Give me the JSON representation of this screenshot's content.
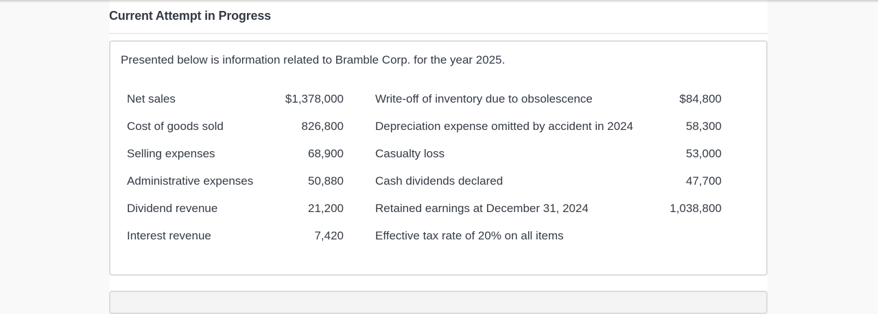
{
  "header": {
    "title": "Current Attempt in Progress"
  },
  "question": {
    "intro": "Presented below is information related to Bramble Corp. for the year 2025.",
    "rows": [
      {
        "left_label": "Net sales",
        "left_value": "$1,378,000",
        "right_label": "Write-off of inventory due to obsolescence",
        "right_value": "$84,800"
      },
      {
        "left_label": "Cost of goods sold",
        "left_value": "826,800",
        "right_label": "Depreciation expense omitted by accident in 2024",
        "right_value": "58,300"
      },
      {
        "left_label": "Selling expenses",
        "left_value": "68,900",
        "right_label": "Casualty loss",
        "right_value": "53,000"
      },
      {
        "left_label": "Administrative expenses",
        "left_value": "50,880",
        "right_label": "Cash dividends declared",
        "right_value": "47,700"
      },
      {
        "left_label": "Dividend revenue",
        "left_value": "21,200",
        "right_label": "Retained earnings at December 31, 2024",
        "right_value": "1,038,800"
      },
      {
        "left_label": "Interest revenue",
        "left_value": "7,420",
        "right_label": "Effective tax rate of 20% on all items",
        "right_value": ""
      }
    ]
  }
}
